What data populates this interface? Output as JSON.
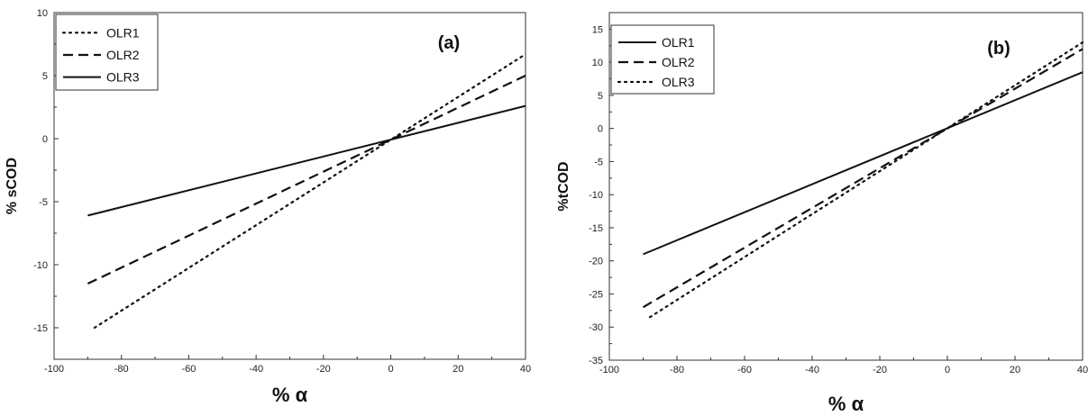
{
  "chart_data": [
    {
      "type": "line",
      "panel_label": "(a)",
      "xlabel": "% α",
      "ylabel": "% sCOD",
      "xlim": [
        -100,
        40
      ],
      "ylim": [
        -17.5,
        10
      ],
      "xticks": [
        -100,
        -80,
        -60,
        -40,
        -20,
        0,
        20,
        40
      ],
      "yticks": [
        10,
        5,
        0,
        -5,
        -10,
        -15
      ],
      "legend_position": "top-left",
      "series": [
        {
          "name": "OLR1",
          "style": "dotted",
          "x": [
            -88,
            40
          ],
          "y": [
            -15,
            6.7
          ]
        },
        {
          "name": "OLR2",
          "style": "dashed",
          "x": [
            -90,
            40
          ],
          "y": [
            -11.5,
            5.0
          ]
        },
        {
          "name": "OLR3",
          "style": "solid",
          "x": [
            -90,
            40
          ],
          "y": [
            -6.1,
            2.6
          ]
        }
      ]
    },
    {
      "type": "line",
      "panel_label": "(b)",
      "xlabel": "% α",
      "ylabel": "%tCOD",
      "xlim": [
        -100,
        40
      ],
      "ylim": [
        -35,
        17.5
      ],
      "xticks": [
        -100,
        -80,
        -60,
        -40,
        -20,
        0,
        20,
        40
      ],
      "yticks": [
        15,
        10,
        5,
        0,
        -5,
        -10,
        -15,
        -20,
        -25,
        -30,
        -35
      ],
      "legend_position": "top-left",
      "series": [
        {
          "name": "OLR1",
          "style": "solid",
          "x": [
            -90,
            40
          ],
          "y": [
            -19,
            8.5
          ]
        },
        {
          "name": "OLR2",
          "style": "dashed",
          "x": [
            -90,
            40
          ],
          "y": [
            -27,
            12
          ]
        },
        {
          "name": "OLR3",
          "style": "dotted",
          "x": [
            -88,
            40
          ],
          "y": [
            -28.5,
            13
          ]
        }
      ]
    }
  ]
}
